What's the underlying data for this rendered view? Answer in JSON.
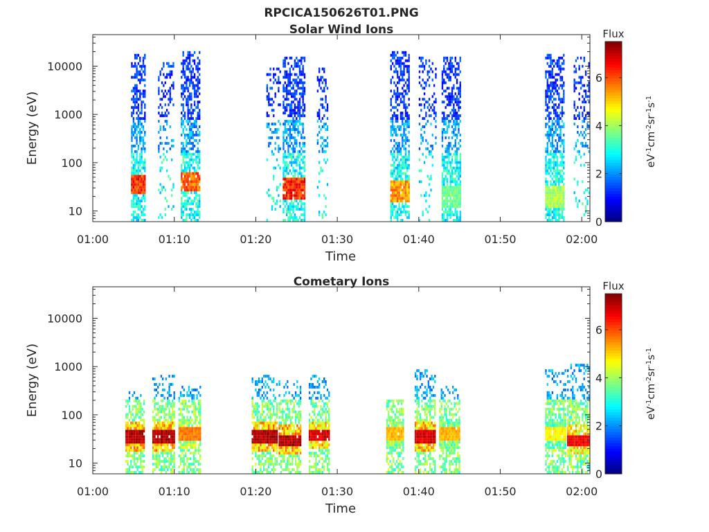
{
  "figure": {
    "title": "RPCICA150626T01.PNG"
  },
  "chart_data": [
    {
      "type": "heatmap",
      "title": "Solar Wind Ions",
      "xlabel": "Time",
      "ylabel": "Energy (eV)",
      "x_tick_labels": [
        "01:00",
        "01:10",
        "01:20",
        "01:30",
        "01:40",
        "01:50",
        "02:00"
      ],
      "y_tick_labels": [
        "10",
        "100",
        "1000",
        "10000"
      ],
      "y_scale": "log",
      "ylim": [
        6,
        45000
      ],
      "xlim_minutes": [
        0,
        61
      ],
      "colorbar": {
        "label": "Flux",
        "units": "eV-1cm-2sr-1s-1",
        "range": [
          0,
          7.5
        ],
        "tick_labels": [
          "0",
          "2",
          "4",
          "6"
        ]
      },
      "bursts": [
        {
          "time_start": "01:04.7",
          "time_end": "01:06.4",
          "energy_max": 17000,
          "low_energy_peak": 35,
          "peak_flux": 7
        },
        {
          "time_start": "01:08.0",
          "time_end": "01:09.8",
          "energy_max": 12000,
          "low_energy_peak": 0,
          "peak_flux": 2
        },
        {
          "time_start": "01:10.8",
          "time_end": "01:13.0",
          "energy_max": 20000,
          "low_energy_peak": 40,
          "peak_flux": 6.5
        },
        {
          "time_start": "01:21.3",
          "time_end": "01:23.0",
          "energy_max": 9000,
          "low_energy_peak": 0,
          "peak_flux": 2
        },
        {
          "time_start": "01:23.3",
          "time_end": "01:26.0",
          "energy_max": 16000,
          "low_energy_peak": 30,
          "peak_flux": 7
        },
        {
          "time_start": "01:27.5",
          "time_end": "01:28.8",
          "energy_max": 10000,
          "low_energy_peak": 0,
          "peak_flux": 2
        },
        {
          "time_start": "01:36.5",
          "time_end": "01:38.8",
          "energy_max": 20000,
          "low_energy_peak": 25,
          "peak_flux": 6
        },
        {
          "time_start": "01:40.0",
          "time_end": "01:42.0",
          "energy_max": 15000,
          "low_energy_peak": 0,
          "peak_flux": 2
        },
        {
          "time_start": "01:42.8",
          "time_end": "01:45.0",
          "energy_max": 15000,
          "low_energy_peak": 20,
          "peak_flux": 4
        },
        {
          "time_start": "01:55.5",
          "time_end": "01:57.8",
          "energy_max": 18000,
          "low_energy_peak": 20,
          "peak_flux": 4.5
        },
        {
          "time_start": "01:59.0",
          "time_end": "02:00.8",
          "energy_max": 15000,
          "low_energy_peak": 0,
          "peak_flux": 2
        }
      ]
    },
    {
      "type": "heatmap",
      "title": "Cometary Ions",
      "xlabel": "Time",
      "ylabel": "Energy (eV)",
      "x_tick_labels": [
        "01:00",
        "01:10",
        "01:20",
        "01:30",
        "01:40",
        "01:50",
        "02:00"
      ],
      "y_tick_labels": [
        "10",
        "100",
        "1000",
        "10000"
      ],
      "y_scale": "log",
      "ylim": [
        6,
        45000
      ],
      "xlim_minutes": [
        0,
        61
      ],
      "colorbar": {
        "label": "Flux",
        "units": "eV-1cm-2sr-1s-1",
        "range": [
          0,
          7.5
        ],
        "tick_labels": [
          "0",
          "2",
          "4",
          "6"
        ]
      },
      "bursts": [
        {
          "time_start": "01:04.0",
          "time_end": "01:06.3",
          "energy_max": 300,
          "core_energy": 35,
          "peak_flux": 7.5
        },
        {
          "time_start": "01:07.3",
          "time_end": "01:10.0",
          "energy_max": 700,
          "core_energy": 35,
          "peak_flux": 7.5
        },
        {
          "time_start": "01:10.5",
          "time_end": "01:13.2",
          "energy_max": 400,
          "core_energy": 40,
          "peak_flux": 6
        },
        {
          "time_start": "01:19.5",
          "time_end": "01:22.5",
          "energy_max": 700,
          "core_energy": 35,
          "peak_flux": 7.5
        },
        {
          "time_start": "01:22.8",
          "time_end": "01:25.5",
          "energy_max": 500,
          "core_energy": 30,
          "peak_flux": 7.5
        },
        {
          "time_start": "01:26.5",
          "time_end": "01:29.0",
          "energy_max": 700,
          "core_energy": 38,
          "peak_flux": 7.2
        },
        {
          "time_start": "01:36.0",
          "time_end": "01:38.0",
          "energy_max": 200,
          "core_energy": 40,
          "peak_flux": 5.5
        },
        {
          "time_start": "01:39.5",
          "time_end": "01:42.0",
          "energy_max": 900,
          "core_energy": 35,
          "peak_flux": 7.3
        },
        {
          "time_start": "01:42.5",
          "time_end": "01:45.0",
          "energy_max": 400,
          "core_energy": 40,
          "peak_flux": 5.5
        },
        {
          "time_start": "01:55.5",
          "time_end": "01:58.0",
          "energy_max": 900,
          "core_energy": 40,
          "peak_flux": 5
        },
        {
          "time_start": "01:58.2",
          "time_end": "02:00.8",
          "energy_max": 1200,
          "core_energy": 30,
          "peak_flux": 7
        }
      ]
    }
  ]
}
